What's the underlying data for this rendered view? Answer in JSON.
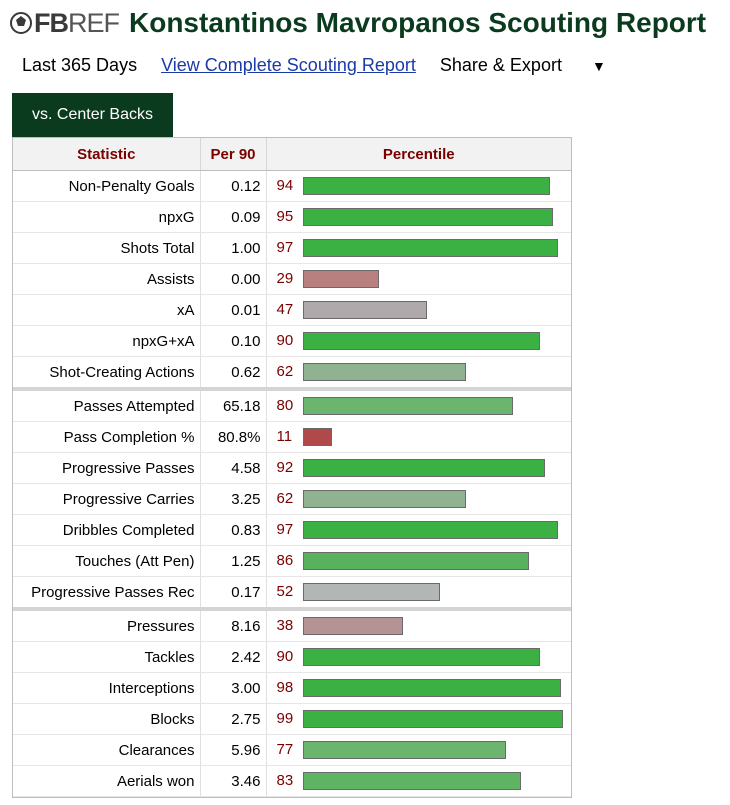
{
  "header": {
    "logo_fb": "FB",
    "logo_ref": "REF",
    "title": "Konstantinos Mavropanos Scouting Report"
  },
  "subnav": {
    "period": "Last 365 Days",
    "complete_link": "View Complete Scouting Report",
    "share": "Share & Export",
    "share_caret": "▼"
  },
  "tab": {
    "label": "vs. Center Backs"
  },
  "table": {
    "headers": {
      "statistic": "Statistic",
      "per90": "Per 90",
      "percentile": "Percentile"
    },
    "rows": [
      {
        "stat": "Non-Penalty Goals",
        "per90": "0.12",
        "percentile": 94,
        "color": "#3bb143",
        "group_start": false
      },
      {
        "stat": "npxG",
        "per90": "0.09",
        "percentile": 95,
        "color": "#3bb143",
        "group_start": false
      },
      {
        "stat": "Shots Total",
        "per90": "1.00",
        "percentile": 97,
        "color": "#3bb143",
        "group_start": false
      },
      {
        "stat": "Assists",
        "per90": "0.00",
        "percentile": 29,
        "color": "#b98080",
        "group_start": false
      },
      {
        "stat": "xA",
        "per90": "0.01",
        "percentile": 47,
        "color": "#b0a9ab",
        "group_start": false
      },
      {
        "stat": "npxG+xA",
        "per90": "0.10",
        "percentile": 90,
        "color": "#3bb143",
        "group_start": false
      },
      {
        "stat": "Shot-Creating Actions",
        "per90": "0.62",
        "percentile": 62,
        "color": "#8fb392",
        "group_start": false
      },
      {
        "stat": "Passes Attempted",
        "per90": "65.18",
        "percentile": 80,
        "color": "#6bb56e",
        "group_start": true
      },
      {
        "stat": "Pass Completion %",
        "per90": "80.8%",
        "percentile": 11,
        "color": "#b04a4a",
        "group_start": false
      },
      {
        "stat": "Progressive Passes",
        "per90": "4.58",
        "percentile": 92,
        "color": "#3bb143",
        "group_start": false
      },
      {
        "stat": "Progressive Carries",
        "per90": "3.25",
        "percentile": 62,
        "color": "#8fb392",
        "group_start": false
      },
      {
        "stat": "Dribbles Completed",
        "per90": "0.83",
        "percentile": 97,
        "color": "#3bb143",
        "group_start": false
      },
      {
        "stat": "Touches (Att Pen)",
        "per90": "1.25",
        "percentile": 86,
        "color": "#58b15c",
        "group_start": false
      },
      {
        "stat": "Progressive Passes Rec",
        "per90": "0.17",
        "percentile": 52,
        "color": "#b2b6b4",
        "group_start": false
      },
      {
        "stat": "Pressures",
        "per90": "8.16",
        "percentile": 38,
        "color": "#b59293",
        "group_start": true
      },
      {
        "stat": "Tackles",
        "per90": "2.42",
        "percentile": 90,
        "color": "#3bb143",
        "group_start": false
      },
      {
        "stat": "Interceptions",
        "per90": "3.00",
        "percentile": 98,
        "color": "#3bb143",
        "group_start": false
      },
      {
        "stat": "Blocks",
        "per90": "2.75",
        "percentile": 99,
        "color": "#3bb143",
        "group_start": false
      },
      {
        "stat": "Clearances",
        "per90": "5.96",
        "percentile": 77,
        "color": "#6bb56e",
        "group_start": false
      },
      {
        "stat": "Aerials won",
        "per90": "3.46",
        "percentile": 83,
        "color": "#5fb463",
        "group_start": false
      }
    ]
  }
}
